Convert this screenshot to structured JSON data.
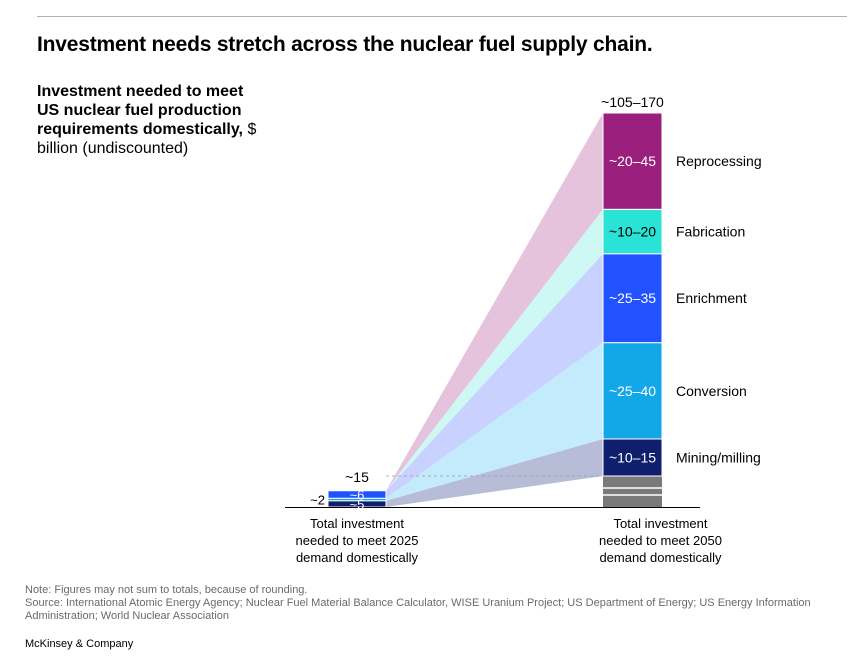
{
  "page": {
    "title": "Investment needs stretch across the nuclear fuel supply chain.",
    "subtitle_bold": "Investment needed to meet US nuclear fuel production requirements domestically,",
    "subtitle_rest": " $ billion (undiscounted)",
    "note": "Note: Figures may not sum to totals, because of rounding.",
    "source": "Source: International Atomic Energy Agency; Nuclear Fuel Material Balance Calculator, WISE Uranium Project; US Department of Energy; US Energy Information Administration; World Nuclear Association",
    "brand": "McKinsey & Company"
  },
  "colors": {
    "mining": "#0f1f6e",
    "conversion": "#12a8e8",
    "enrichment": "#2251ff",
    "fabrication": "#2ae3d6",
    "reprocessing": "#9b1f7c",
    "gray": "#7a7a7a",
    "band_mining": "#b7bdd6",
    "band_conversion": "#c4ebfb",
    "band_enrichment": "#c9d2ff",
    "band_fabrication": "#cdf8f4",
    "band_reprocessing": "#e6c3dc"
  },
  "chart_data": {
    "type": "bar",
    "stacked": true,
    "categories": [
      "Total investment needed to meet 2025 demand domestically",
      "Total investment needed to meet 2050 demand domestically"
    ],
    "totals": [
      "~15",
      "~105–170"
    ],
    "series": [
      {
        "name": "Mining/milling",
        "labels": [
          "~5",
          "~10–15"
        ],
        "values": [
          5,
          12.5
        ]
      },
      {
        "name": "Conversion",
        "labels": [
          "~2",
          "~25–40"
        ],
        "values": [
          2,
          32.5
        ]
      },
      {
        "name": "Enrichment",
        "labels": [
          "~6",
          "~25–35"
        ],
        "values": [
          6,
          30
        ]
      },
      {
        "name": "Fabrication",
        "labels": [
          "",
          "~10–20"
        ],
        "values": [
          0,
          15
        ]
      },
      {
        "name": "Reprocessing",
        "labels": [
          "",
          "~20–45"
        ],
        "values": [
          0,
          32.5
        ]
      }
    ]
  }
}
